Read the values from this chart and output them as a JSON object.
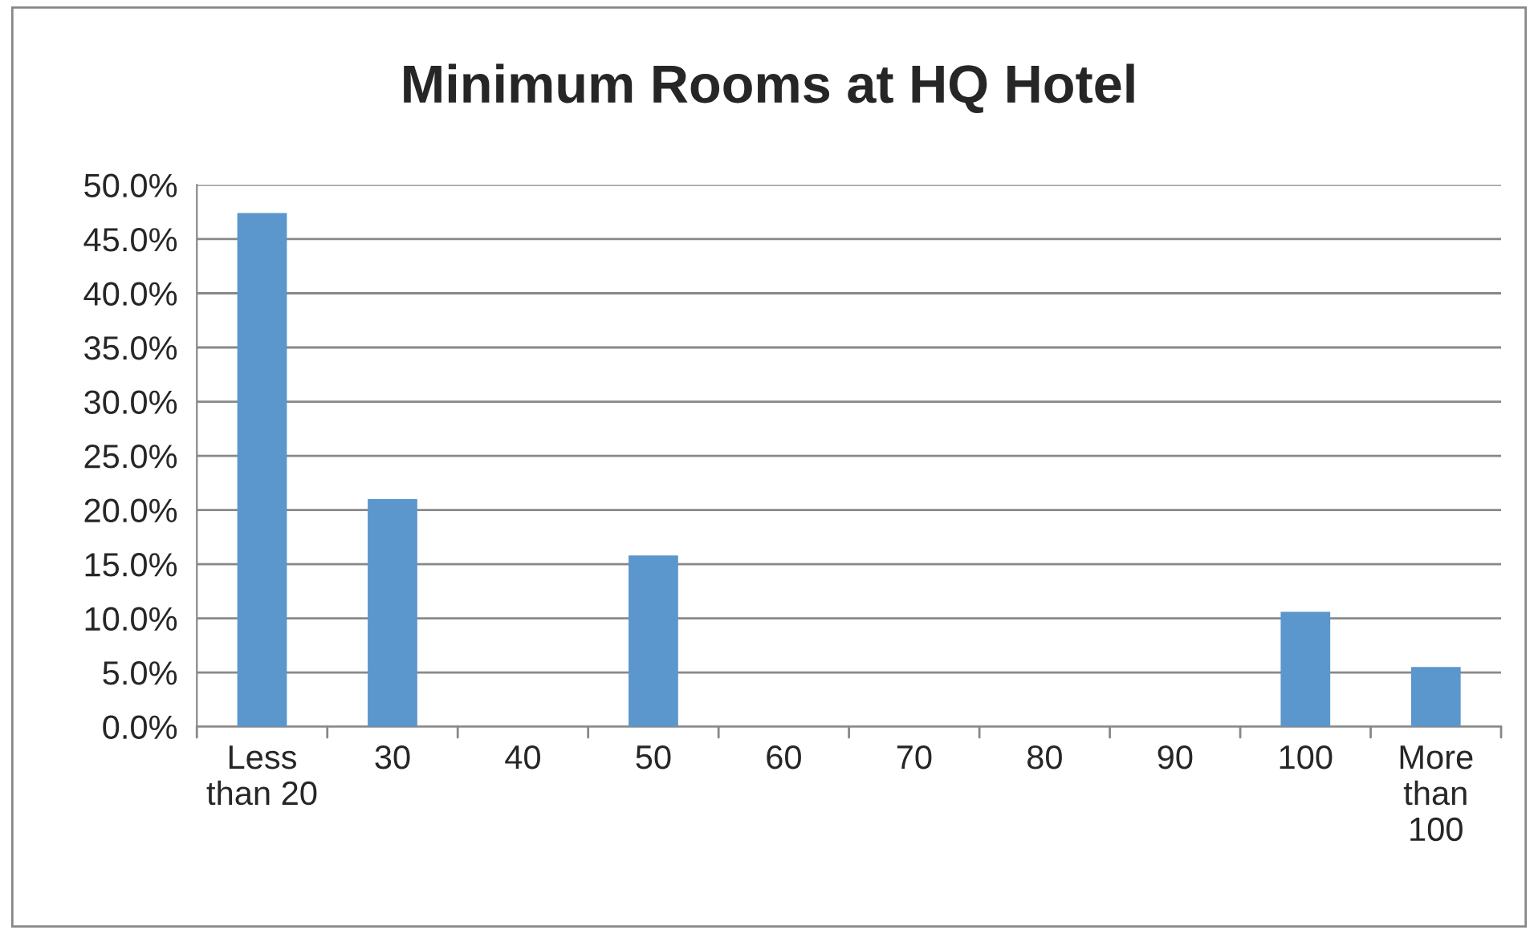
{
  "chart_data": {
    "type": "bar",
    "title": "Minimum Rooms at HQ Hotel",
    "categories": [
      "Less\nthan 20",
      "30",
      "40",
      "50",
      "60",
      "70",
      "80",
      "90",
      "100",
      "More\nthan\n100"
    ],
    "values": [
      47.4,
      21.0,
      0,
      15.8,
      0,
      0,
      0,
      0,
      10.6,
      5.5
    ],
    "color": "#5b96cc",
    "ylim": [
      0,
      50
    ],
    "yticks": [
      {
        "value": 0,
        "label": "0.0%"
      },
      {
        "value": 5,
        "label": "5.0%"
      },
      {
        "value": 10,
        "label": "10.0%"
      },
      {
        "value": 15,
        "label": "15.0%"
      },
      {
        "value": 20,
        "label": "20.0%"
      },
      {
        "value": 25,
        "label": "25.0%"
      },
      {
        "value": 30,
        "label": "30.0%"
      },
      {
        "value": 35,
        "label": "35.0%"
      },
      {
        "value": 40,
        "label": "40.0%"
      },
      {
        "value": 45,
        "label": "45.0%"
      },
      {
        "value": 50,
        "label": "50.0%"
      }
    ],
    "grid": "y",
    "legend": false
  }
}
